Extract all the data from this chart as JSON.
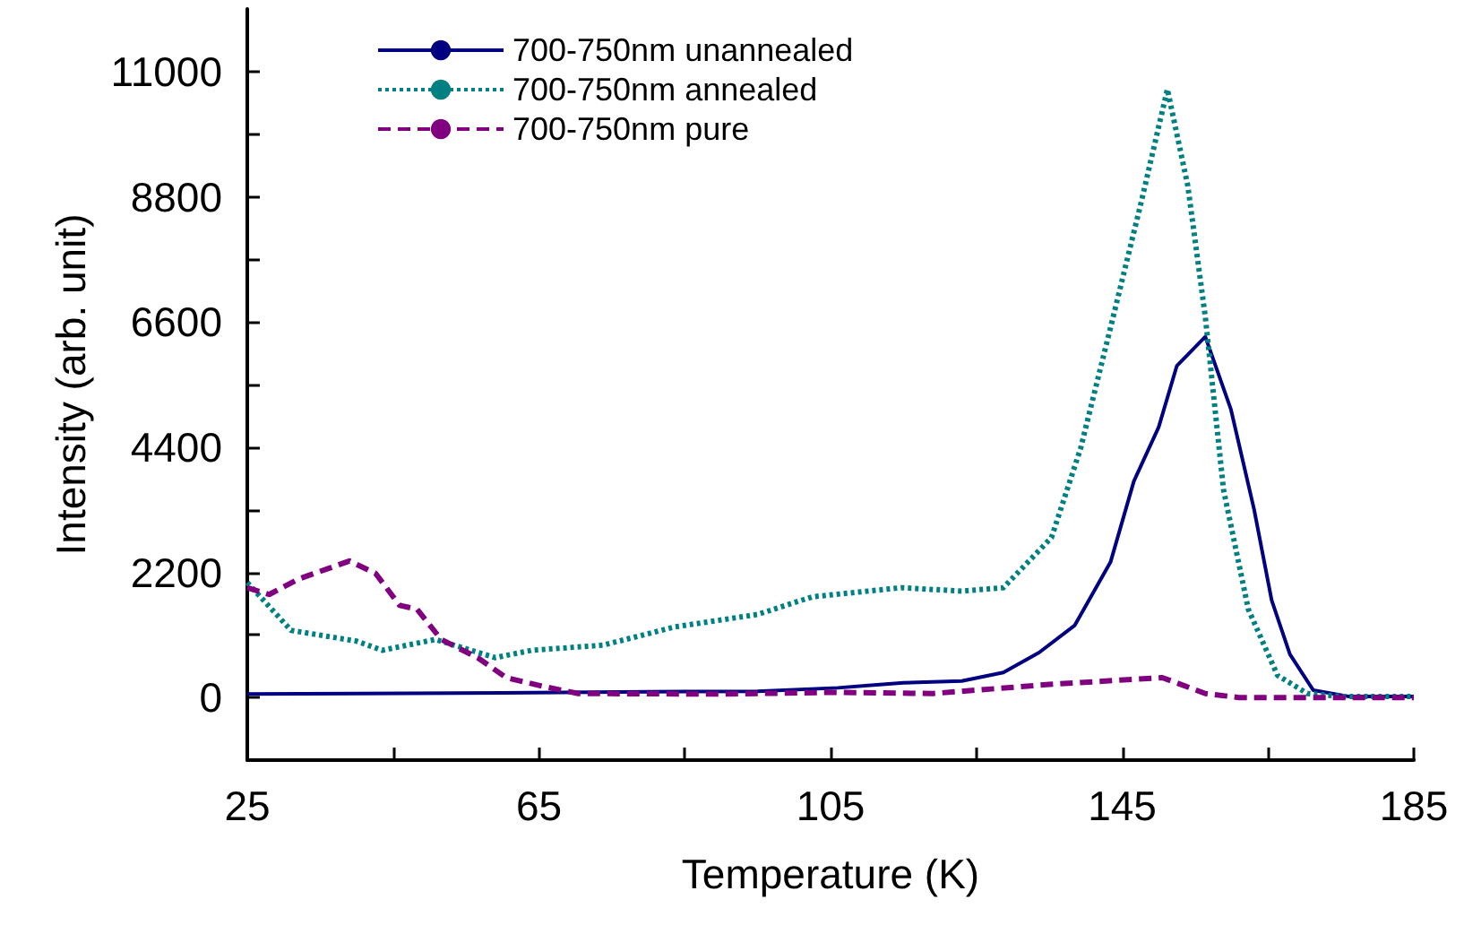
{
  "chart_data": {
    "type": "line",
    "xlabel": "Temperature (K)",
    "ylabel": "Intensity (arb. unit)",
    "xlim": [
      25,
      185
    ],
    "xticks": [
      25,
      {
        "value": 45,
        "label": null
      },
      65,
      {
        "value": 85,
        "label": null
      },
      105,
      {
        "value": 125,
        "label": null
      },
      145,
      {
        "value": 165,
        "label": null
      },
      185
    ],
    "ylim": [
      -1100,
      12100
    ],
    "yticks": [
      0,
      {
        "value": 1100,
        "label": null
      },
      2200,
      {
        "value": 3300,
        "label": null
      },
      4400,
      {
        "value": 5500,
        "label": null
      },
      6600,
      {
        "value": 7700,
        "label": null
      },
      8800,
      {
        "value": 9900,
        "label": null
      },
      11000
    ],
    "grid": false,
    "legend": "top left",
    "marker": "none",
    "series": [
      {
        "name": "700-750nm unannealed",
        "color": "#000080",
        "line_style": "solid",
        "x": [
          25,
          40,
          60,
          80,
          95,
          106,
          115,
          123,
          128.7,
          133.6,
          138.5,
          143.4,
          146.6,
          150,
          152.5,
          156.4,
          159.9,
          163.1,
          165.5,
          168,
          171.2,
          176,
          185
        ],
        "values": [
          60,
          70,
          80,
          100,
          110,
          170,
          260,
          290,
          440,
          790,
          1270,
          2380,
          3800,
          4750,
          5830,
          6340,
          5070,
          3300,
          1710,
          760,
          130,
          20,
          20
        ]
      },
      {
        "name": "700-750nm annealed",
        "color": "#008080",
        "line_style": "dotted",
        "x": [
          25,
          31,
          40,
          43.5,
          50.8,
          59,
          64,
          73.8,
          83.6,
          95,
          102.5,
          114.7,
          123,
          128.7,
          135.3,
          139.3,
          143.4,
          147.6,
          151.2,
          154,
          156.4,
          158.9,
          162.3,
          166.3,
          170.4,
          175,
          185
        ],
        "values": [
          2020,
          1180,
          990,
          830,
          1020,
          700,
          830,
          920,
          1240,
          1460,
          1770,
          1930,
          1870,
          1930,
          2810,
          4380,
          6500,
          8700,
          10690,
          8990,
          6690,
          3650,
          1550,
          390,
          70,
          20,
          20
        ]
      },
      {
        "name": "700-750nm pure",
        "color": "#800080",
        "line_style": "dashed",
        "x": [
          25,
          28,
          32,
          39,
          42.6,
          45.9,
          48.3,
          51.6,
          56.6,
          60.5,
          65.4,
          70.4,
          90,
          105,
          119,
          135,
          150.5,
          156.4,
          161,
          185
        ],
        "values": [
          1930,
          1810,
          2080,
          2400,
          2180,
          1620,
          1550,
          1020,
          700,
          350,
          200,
          70,
          60,
          90,
          70,
          230,
          350,
          70,
          0,
          0
        ]
      }
    ]
  }
}
